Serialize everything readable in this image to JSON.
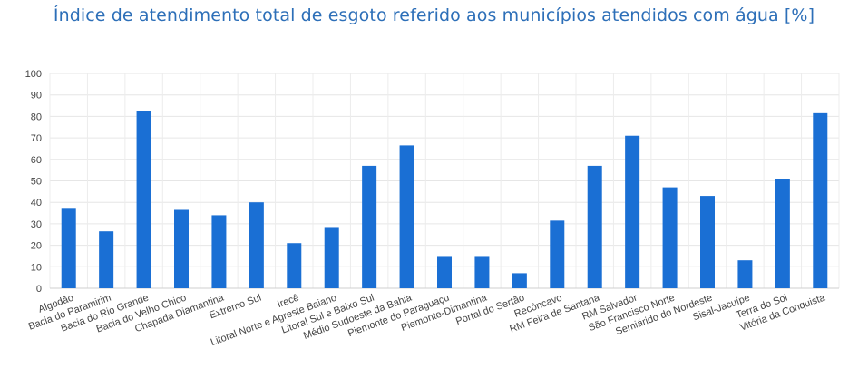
{
  "chart_data": {
    "type": "bar",
    "title": "Índice de atendimento total de esgoto referido aos municípios atendidos com água [%]",
    "xlabel": "",
    "ylabel": "",
    "ylim": [
      0,
      100
    ],
    "yticks": [
      0,
      10,
      20,
      30,
      40,
      50,
      60,
      70,
      80,
      90,
      100
    ],
    "grid": true,
    "bar_color": "#1a6fd4",
    "categories": [
      "Algodão",
      "Bacia do Paramirim",
      "Bacia do Rio Grande",
      "Bacia do Velho Chico",
      "Chapada Diamantina",
      "Extremo Sul",
      "Irecê",
      "Litoral Norte e Agreste Baiano",
      "Litoral Sul e Baixo Sul",
      "Médio Sudoeste da Bahia",
      "Piemonte do Paraguaçu",
      "Piemonte-Dimantina",
      "Portal do Sertão",
      "Recôncavo",
      "RM Feira de Santana",
      "RM Salvador",
      "São Francisco Norte",
      "Semiárido do Nordeste",
      "Sisal-Jacuípe",
      "Terra do Sol",
      "Vitória da Conquista"
    ],
    "values": [
      37,
      26.5,
      82.5,
      36.5,
      34,
      40,
      21,
      28.5,
      57,
      66.5,
      15,
      15,
      7,
      31.5,
      57,
      71,
      47,
      43,
      13,
      51,
      81.5
    ]
  }
}
